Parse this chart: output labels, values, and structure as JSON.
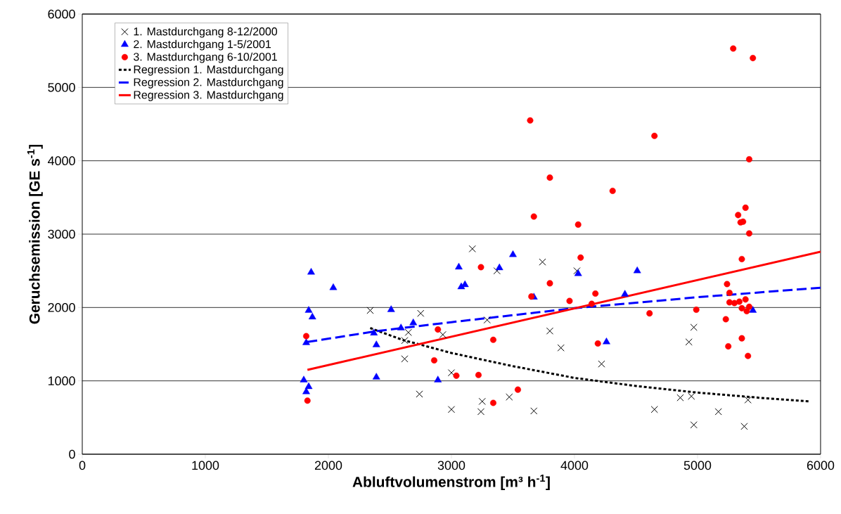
{
  "chart_data": {
    "type": "scatter",
    "xlabel": "Abluftvolumenstrom [m³ h$^{-1}$]",
    "ylabel": "Geruchsemission [GE s$^{-1}$]",
    "xlim": [
      0,
      6000
    ],
    "ylim": [
      0,
      6000
    ],
    "xticks": [
      0,
      1000,
      2000,
      3000,
      4000,
      5000,
      6000
    ],
    "yticks": [
      0,
      1000,
      2000,
      3000,
      4000,
      5000,
      6000
    ],
    "grid": "y",
    "legend": "top left",
    "series": [
      {
        "name": "1. Mastdurchgang 8-12/2000",
        "marker": "cross",
        "color": "#000000",
        "x": [
          2340,
          2620,
          2620,
          2650,
          2740,
          2750,
          2930,
          3000,
          3000,
          3170,
          3240,
          3250,
          3290,
          3370,
          3470,
          3670,
          3740,
          3800,
          3890,
          4020,
          4220,
          4650,
          4860,
          4950,
          4930,
          4970,
          4970,
          5170,
          5380,
          5410
        ],
        "values": [
          1960,
          1300,
          1550,
          1660,
          820,
          1920,
          1630,
          1110,
          610,
          2800,
          580,
          720,
          1830,
          2500,
          780,
          590,
          2620,
          1680,
          1450,
          2500,
          1230,
          610,
          770,
          790,
          1530,
          1730,
          400,
          580,
          380,
          740
        ]
      },
      {
        "name": "2. Mastdurchgang 1-5/2001",
        "marker": "triangle",
        "color": "#0000ff",
        "x": [
          1800,
          1820,
          1820,
          1840,
          1840,
          1860,
          1870,
          2040,
          2370,
          2390,
          2390,
          2510,
          2590,
          2690,
          2890,
          3060,
          3080,
          3110,
          3390,
          3500,
          3670,
          4030,
          4260,
          4410,
          4510,
          5450
        ],
        "values": [
          1010,
          850,
          1520,
          920,
          1960,
          2480,
          1870,
          2270,
          1650,
          1490,
          1050,
          1970,
          1720,
          1790,
          1010,
          2550,
          2280,
          2310,
          2540,
          2720,
          2140,
          2460,
          1530,
          2180,
          2500,
          1960
        ]
      },
      {
        "name": "3. Mastdurchgang 6-10/2001",
        "marker": "circle",
        "color": "#ff0000",
        "x": [
          1820,
          1830,
          2860,
          2890,
          3040,
          3220,
          3240,
          3340,
          3340,
          3540,
          3650,
          3640,
          3670,
          3800,
          3800,
          3960,
          4030,
          4050,
          4140,
          4170,
          4190,
          4310,
          4610,
          4650,
          4990,
          5230,
          5240,
          5250,
          5260,
          5260,
          5290,
          5300,
          5330,
          5340,
          5350,
          5360,
          5360,
          5360,
          5370,
          5390,
          5390,
          5400,
          5410,
          5420,
          5420,
          5420,
          5450
        ],
        "values": [
          1610,
          730,
          1280,
          1700,
          1070,
          1080,
          2550,
          1560,
          700,
          880,
          2150,
          4550,
          3240,
          2330,
          3770,
          2090,
          3130,
          2680,
          2050,
          2190,
          1510,
          3590,
          1920,
          4340,
          1970,
          1840,
          2320,
          1470,
          2070,
          2200,
          5530,
          2060,
          3260,
          2080,
          3160,
          1580,
          1990,
          2660,
          3170,
          3360,
          2110,
          1950,
          1340,
          2010,
          3010,
          4020,
          5400
        ]
      },
      {
        "name": "Regression 1. Mastdurchgang",
        "type": "line",
        "line_style": "dotted",
        "color": "#000000",
        "x": [
          2340,
          2600,
          3000,
          3500,
          4000,
          4500,
          5000,
          5500,
          5910
        ],
        "values": [
          1720,
          1560,
          1380,
          1200,
          1040,
          930,
          840,
          770,
          720
        ]
      },
      {
        "name": "Regression 2. Mastdurchgang",
        "type": "line",
        "line_style": "dashed",
        "color": "#0000ff",
        "x": [
          1830,
          2400,
          3000,
          4000,
          5000,
          6000
        ],
        "values": [
          1530,
          1680,
          1800,
          1990,
          2140,
          2270
        ]
      },
      {
        "name": "Regression 3. Mastdurchgang",
        "type": "line",
        "line_style": "solid",
        "color": "#ff0000",
        "x": [
          1830,
          6000
        ],
        "values": [
          1150,
          2760
        ]
      }
    ]
  }
}
